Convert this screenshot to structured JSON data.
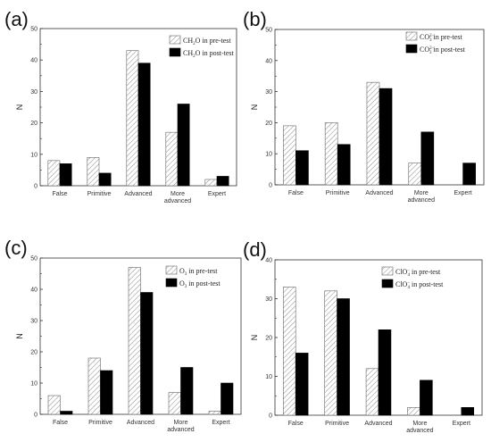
{
  "figure": {
    "charts": [
      {
        "panel": "(a)",
        "ylabel": "N",
        "legend": [
          {
            "pre": "CH",
            "sub": "2",
            "sup": "",
            "post": "O in pre-test",
            "style": "hatched"
          },
          {
            "pre": "CH",
            "sub": "2",
            "sup": "",
            "post": "O in post-test",
            "style": "solid"
          }
        ]
      },
      {
        "panel": "(b)",
        "ylabel": "N",
        "legend": [
          {
            "pre": "CO",
            "sub": "3",
            "sup": "2−",
            "post": " in pre-test",
            "style": "hatched"
          },
          {
            "pre": "CO",
            "sub": "3",
            "sup": "2−",
            "post": " in post-test",
            "style": "solid"
          }
        ]
      },
      {
        "panel": "(c)",
        "ylabel": "N",
        "legend": [
          {
            "pre": "O",
            "sub": "3",
            "sup": "",
            "post": " in pre-test",
            "style": "hatched"
          },
          {
            "pre": "O",
            "sub": "3",
            "sup": "",
            "post": " in post-test",
            "style": "solid"
          }
        ]
      },
      {
        "panel": "(d)",
        "ylabel": "N",
        "legend": [
          {
            "pre": "ClO",
            "sub": "4",
            "sup": "−",
            "post": " in pre-test",
            "style": "hatched"
          },
          {
            "pre": "ClO",
            "sub": "4",
            "sup": "−",
            "post": " in post-test",
            "style": "solid"
          }
        ]
      }
    ]
  },
  "chart_data": [
    {
      "type": "bar",
      "categories": [
        [
          "False"
        ],
        [
          "Primitive"
        ],
        [
          "Advanced"
        ],
        [
          "More",
          "advanced"
        ],
        [
          "Expert"
        ]
      ],
      "series": [
        {
          "name": "CH2O in pre-test",
          "values": [
            8,
            9,
            43,
            17,
            2
          ]
        },
        {
          "name": "CH2O in post-test",
          "values": [
            7,
            4,
            39,
            26,
            3
          ]
        }
      ],
      "ylim": [
        0,
        50
      ],
      "yticks": [
        0,
        10,
        20,
        30,
        40,
        50
      ],
      "legend_position": "top-right",
      "grid": false
    },
    {
      "type": "bar",
      "categories": [
        [
          "False"
        ],
        [
          "Primitive"
        ],
        [
          "Advanced"
        ],
        [
          "More",
          "advanced"
        ],
        [
          "Expert"
        ]
      ],
      "series": [
        {
          "name": "CO3 2- in pre-test",
          "values": [
            19,
            20,
            33,
            7,
            0
          ]
        },
        {
          "name": "CO3 2- in post-test",
          "values": [
            11,
            13,
            31,
            17,
            7
          ]
        }
      ],
      "ylim": [
        0,
        50
      ],
      "yticks": [
        0,
        10,
        20,
        30,
        40,
        50
      ],
      "legend_position": "top-right",
      "grid": false
    },
    {
      "type": "bar",
      "categories": [
        [
          "False"
        ],
        [
          "Primitive"
        ],
        [
          "Advanced"
        ],
        [
          "More",
          "advanced"
        ],
        [
          "Expert"
        ]
      ],
      "series": [
        {
          "name": "O3 in pre-test",
          "values": [
            6,
            18,
            47,
            7,
            1
          ]
        },
        {
          "name": "O3 in post-test",
          "values": [
            1,
            14,
            39,
            15,
            10
          ]
        }
      ],
      "ylim": [
        0,
        50
      ],
      "yticks": [
        0,
        10,
        20,
        30,
        40,
        50
      ],
      "legend_position": "top-right",
      "grid": false
    },
    {
      "type": "bar",
      "categories": [
        [
          "False"
        ],
        [
          "Primitive"
        ],
        [
          "Advanced"
        ],
        [
          "More",
          "advanced"
        ],
        [
          "Expert"
        ]
      ],
      "series": [
        {
          "name": "ClO4 - in pre-test",
          "values": [
            33,
            32,
            12,
            2,
            0
          ]
        },
        {
          "name": "ClO4 - in post-test",
          "values": [
            16,
            30,
            22,
            9,
            2
          ]
        }
      ],
      "ylim": [
        0,
        40
      ],
      "yticks": [
        0,
        10,
        20,
        30,
        40
      ],
      "legend_position": "top-right",
      "grid": false
    }
  ]
}
